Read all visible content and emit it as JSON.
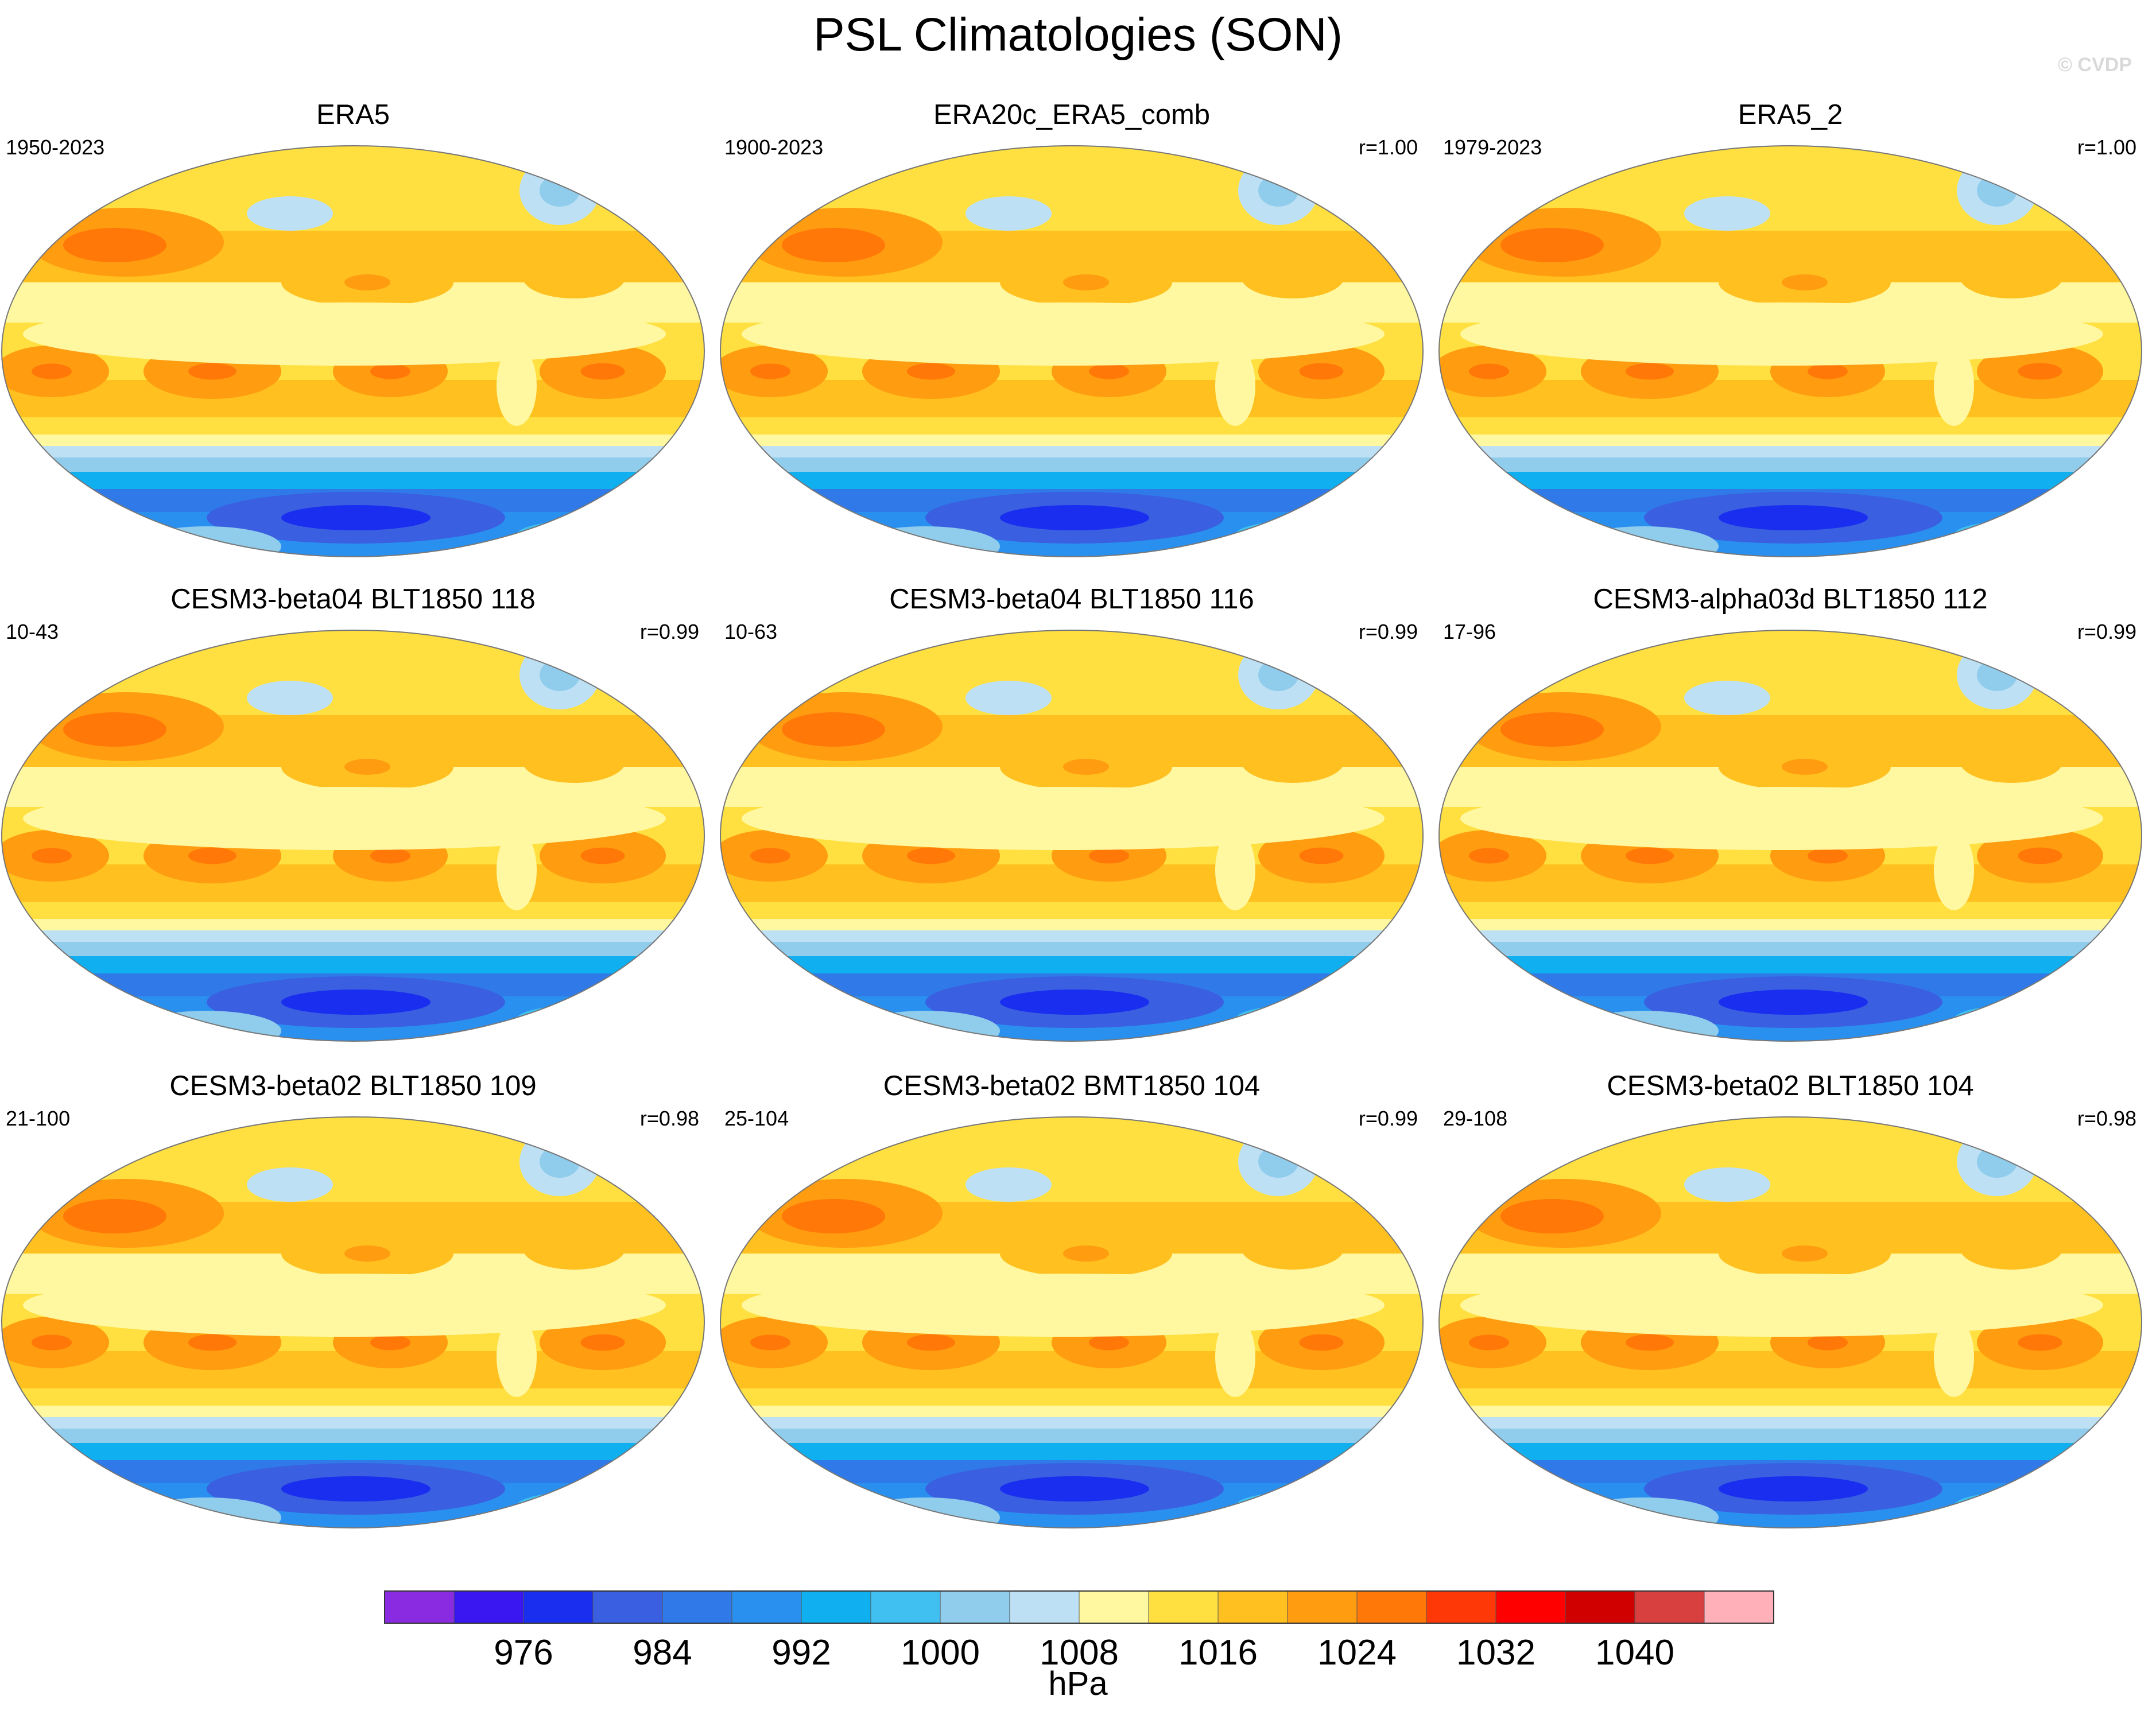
{
  "title": "PSL Climatologies (SON)",
  "watermark": "© CVDP",
  "chart_data": {
    "type": "heatmap",
    "projection": "Robinson, Pacific-centered",
    "variable": "PSL",
    "season": "SON",
    "panels": [
      {
        "name": "ERA5",
        "years": "1950-2023",
        "r": ""
      },
      {
        "name": "ERA20c_ERA5_comb",
        "years": "1900-2023",
        "r": "r=1.00"
      },
      {
        "name": "ERA5_2",
        "years": "1979-2023",
        "r": "r=1.00"
      },
      {
        "name": "CESM3-beta04 BLT1850 118",
        "years": "10-43",
        "r": "r=0.99"
      },
      {
        "name": "CESM3-beta04 BLT1850 116",
        "years": "10-63",
        "r": "r=0.99"
      },
      {
        "name": "CESM3-alpha03d BLT1850 112",
        "years": "17-96",
        "r": "r=0.99"
      },
      {
        "name": "CESM3-beta02 BLT1850 109",
        "years": "21-100",
        "r": "r=0.98"
      },
      {
        "name": "CESM3-beta02 BMT1850 104",
        "years": "25-104",
        "r": "r=0.99"
      },
      {
        "name": "CESM3-beta02 BLT1850 104",
        "years": "29-108",
        "r": "r=0.98"
      }
    ],
    "colorbar": {
      "units": "hPa",
      "levels": [
        972,
        976,
        980,
        984,
        988,
        992,
        996,
        1000,
        1004,
        1008,
        1012,
        1016,
        1020,
        1024,
        1028,
        1032,
        1036,
        1040,
        1044
      ],
      "tick_labels": [
        "976",
        "984",
        "992",
        "1000",
        "1008",
        "1016",
        "1024",
        "1032",
        "1040"
      ],
      "colors": [
        "#8a2be2",
        "#3a17f0",
        "#1a2ef0",
        "#3a5fe0",
        "#2f7ae8",
        "#2a90f0",
        "#10b0f0",
        "#40c0f0",
        "#90ccec",
        "#bde0f4",
        "#fff8a0",
        "#ffe040",
        "#ffc020",
        "#ff9c10",
        "#ff7808",
        "#ff3808",
        "#ff0000",
        "#d00000",
        "#d84040",
        "#ffb0b8"
      ]
    }
  }
}
